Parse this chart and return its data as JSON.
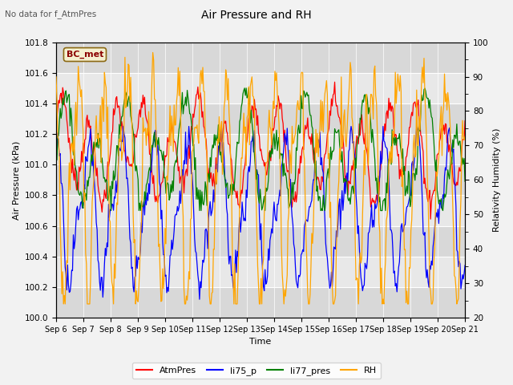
{
  "title": "Air Pressure and RH",
  "subtitle": "No data for f_AtmPres",
  "annotation": "BC_met",
  "xlabel": "Time",
  "ylabel_left": "Air Pressure (kPa)",
  "ylabel_right": "Relativity Humidity (%)",
  "ylim_left": [
    100.0,
    101.8
  ],
  "ylim_right": [
    20,
    100
  ],
  "yticks_left": [
    100.0,
    100.2,
    100.4,
    100.6,
    100.8,
    101.0,
    101.2,
    101.4,
    101.6,
    101.8
  ],
  "yticks_right": [
    20,
    30,
    40,
    50,
    60,
    70,
    80,
    90,
    100
  ],
  "xtick_labels": [
    "Sep 6",
    "Sep 7",
    "Sep 8",
    "Sep 9",
    "Sep 10",
    "Sep 11",
    "Sep 12",
    "Sep 13",
    "Sep 14",
    "Sep 15",
    "Sep 16",
    "Sep 17",
    "Sep 18",
    "Sep 19",
    "Sep 20",
    "Sep 21"
  ],
  "legend_entries": [
    "AtmPres",
    "li75_p",
    "li77_pres",
    "RH"
  ],
  "legend_colors": [
    "red",
    "blue",
    "green",
    "orange"
  ],
  "fig_bg_color": "#f2f2f2",
  "plot_bg_color": "#e8e8e8",
  "band_light": "#e8e8e8",
  "band_dark": "#d8d8d8",
  "n_points": 500
}
